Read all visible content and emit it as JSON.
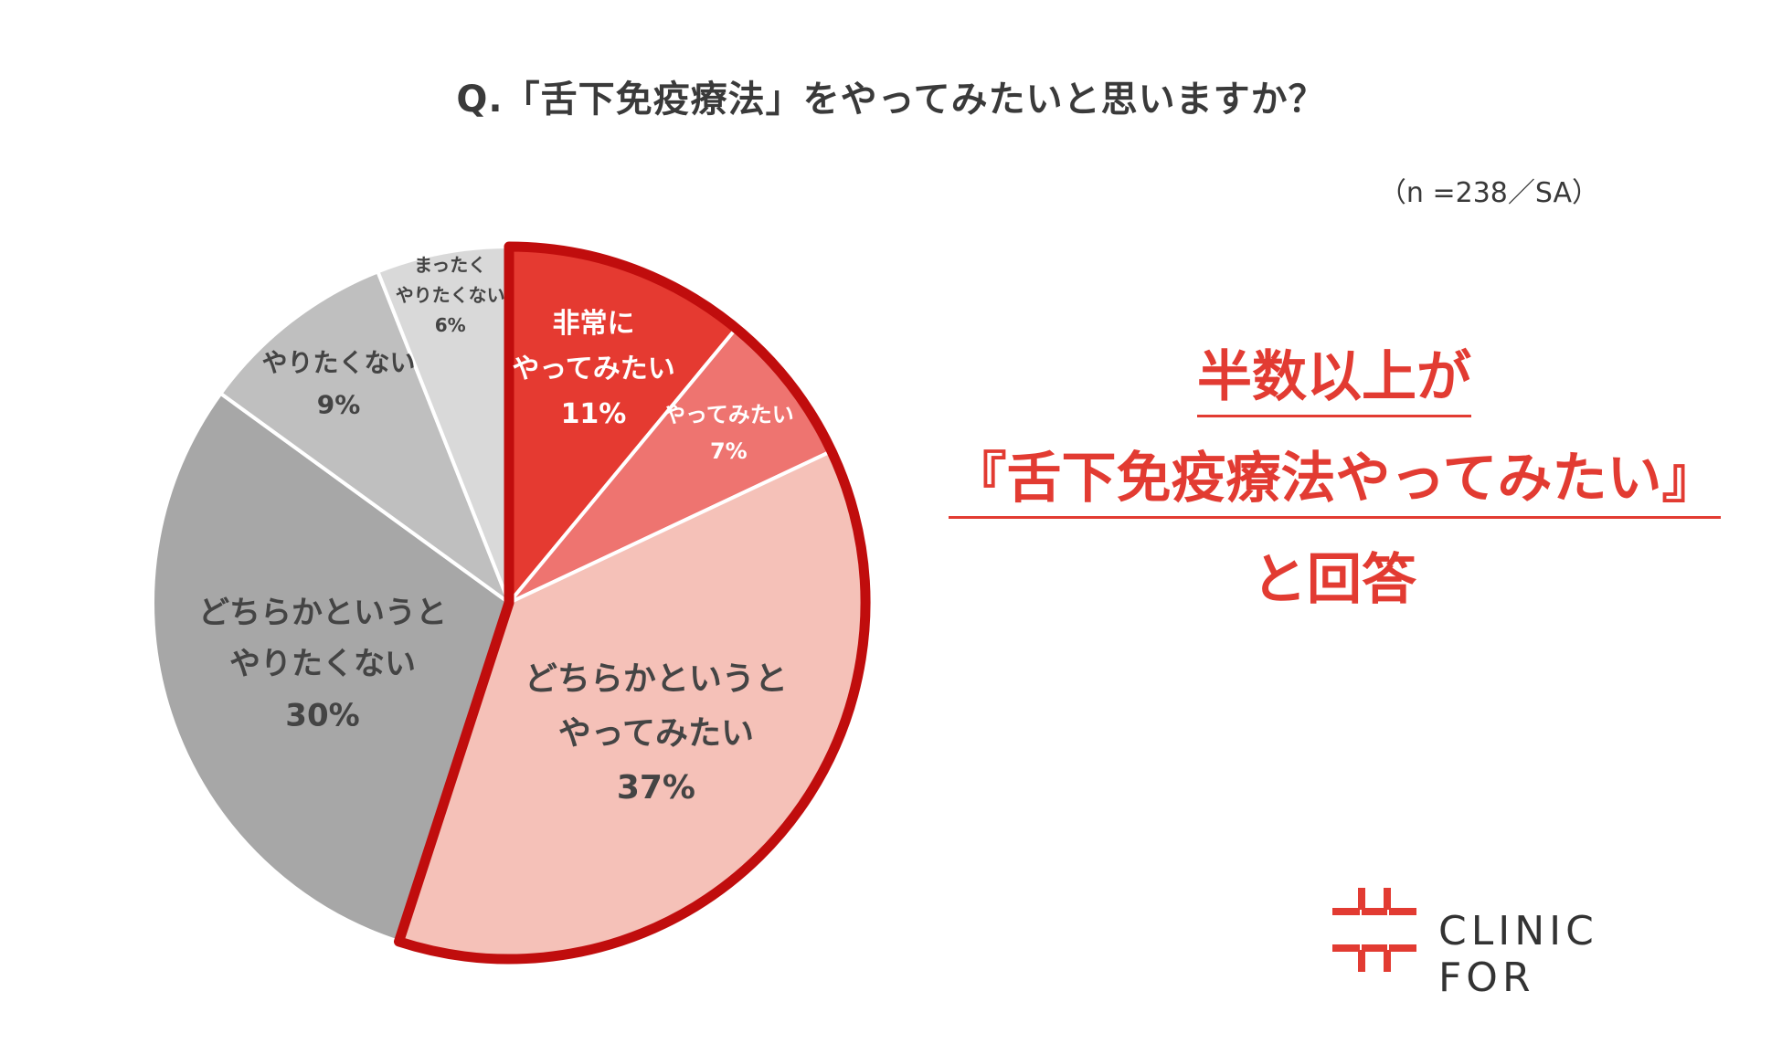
{
  "header": {
    "title": "Q.「舌下免疫療法」をやってみたいと思いますか？",
    "sample_note": "（n =238／SA）"
  },
  "chart_data": {
    "type": "pie",
    "title": "Q.「舌下免疫療法」をやってみたいと思いますか？",
    "slices": [
      {
        "label": [
          "非常に",
          "やってみたい"
        ],
        "value": 11,
        "value_label": "11%",
        "color": "#e53a31",
        "text_color": "#ffffff"
      },
      {
        "label": [
          "やってみたい"
        ],
        "value": 7,
        "value_label": "7%",
        "color": "#ee7470",
        "text_color": "#ffffff"
      },
      {
        "label": [
          "どちらかというと",
          "やってみたい"
        ],
        "value": 37,
        "value_label": "37%",
        "color": "#f5c1b8",
        "text_color": "#444444"
      },
      {
        "label": [
          "どちらかというと",
          "やりたくない"
        ],
        "value": 30,
        "value_label": "30%",
        "color": "#a7a7a7",
        "text_color": "#444444"
      },
      {
        "label": [
          "やりたくない"
        ],
        "value": 9,
        "value_label": "9%",
        "color": "#bfbfbf",
        "text_color": "#444444"
      },
      {
        "label": [
          "まったく",
          "やりたくない"
        ],
        "value": 6,
        "value_label": "6%",
        "color": "#d9d9d9",
        "text_color": "#444444"
      }
    ],
    "highlight_group": [
      0,
      1,
      2
    ],
    "highlight_color": "#c00d0d",
    "start": "12 o'clock",
    "direction": "clockwise",
    "legend": "none"
  },
  "callout": {
    "line1": "半数以上が",
    "line2": "『舌下免疫療法やってみたい』",
    "line3": "と回答"
  },
  "logo": {
    "text": "CLINIC FOR",
    "color": "#e23b32"
  }
}
